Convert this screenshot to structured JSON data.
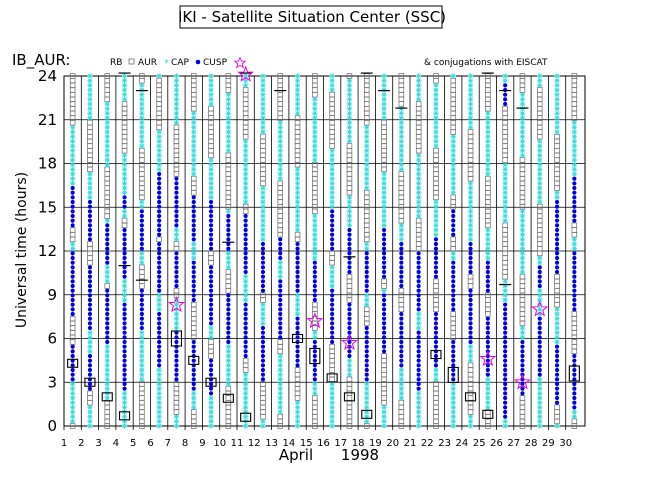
{
  "header": {
    "title": "IKI - Satellite Situation Center (SSC)",
    "subtitle": "IB_AUR:",
    "conj_text": "& conjugations with EISCAT"
  },
  "legend": [
    {
      "label": "RB",
      "symbol": "none"
    },
    {
      "label": "AUR",
      "symbol": "open-square"
    },
    {
      "label": "CAP",
      "symbol": "cyan-star"
    },
    {
      "label": "CUSP",
      "symbol": "blue-dot"
    },
    {
      "label": "",
      "symbol": "magenta-star"
    }
  ],
  "colors": {
    "RB": "#000000",
    "AUR": "#6b6b6b",
    "CAP": "#33dcdc",
    "CUSP": "#0000e6",
    "EISCAT": "#e600e6"
  },
  "chart_data": {
    "type": "scatter",
    "title": "IKI - Satellite Situation Center (SSC)",
    "ylabel": "Universal time (hours)",
    "xlabel": "April",
    "xlabel_year": "1998",
    "ylim": [
      0,
      24
    ],
    "xlim": [
      1,
      31
    ],
    "x_ticks": [
      "1",
      "2",
      "3",
      "4",
      "5",
      "6",
      "7",
      "8",
      "9",
      "10",
      "11",
      "12",
      "13",
      "14",
      "15",
      "16",
      "17",
      "18",
      "19",
      "20",
      "21",
      "22",
      "23",
      "24",
      "25",
      "26",
      "27",
      "28",
      "29",
      "30"
    ],
    "y_ticks": [
      0,
      3,
      6,
      9,
      12,
      15,
      18,
      21,
      24
    ],
    "grid": "horizontal at y ticks, vertical at each day",
    "series": [
      {
        "name": "AUR",
        "type": "band",
        "description": "open squares along each day track"
      },
      {
        "name": "CAP",
        "type": "band",
        "description": "cyan stars along each day track"
      },
      {
        "name": "CUSP",
        "type": "band",
        "description": "blue dots along each day track"
      }
    ],
    "cusp_intervals": [
      {
        "day": 1,
        "ranges": [
          [
            3,
            5.5
          ],
          [
            7.5,
            12
          ],
          [
            13.5,
            16.5
          ]
        ]
      },
      {
        "day": 2,
        "ranges": [
          [
            2.5,
            5
          ],
          [
            6.5,
            11
          ],
          [
            12.5,
            15.5
          ]
        ]
      },
      {
        "day": 3,
        "ranges": [
          [
            5.5,
            9.5
          ],
          [
            11,
            14
          ]
        ]
      },
      {
        "day": 4,
        "ranges": [
          [
            2.5,
            8.5
          ],
          [
            10,
            13.5
          ],
          [
            15,
            16
          ]
        ]
      },
      {
        "day": 5,
        "ranges": [
          [
            6.5,
            9.5
          ],
          [
            12,
            15
          ]
        ]
      },
      {
        "day": 6,
        "ranges": [
          [
            4,
            8
          ],
          [
            9,
            12.5
          ],
          [
            13,
            17.5
          ]
        ]
      },
      {
        "day": 7,
        "ranges": [
          [
            3,
            6.5
          ],
          [
            9.5,
            12
          ],
          [
            13.5,
            17
          ]
        ]
      },
      {
        "day": 8,
        "ranges": [
          [
            2.5,
            6
          ],
          [
            8.5,
            11.5
          ],
          [
            12.5,
            16
          ]
        ]
      },
      {
        "day": 9,
        "ranges": [
          [
            2,
            4.5
          ],
          [
            7,
            11
          ],
          [
            12,
            15.5
          ]
        ]
      },
      {
        "day": 10,
        "ranges": [
          [
            5.5,
            9
          ],
          [
            12,
            14.5
          ]
        ]
      },
      {
        "day": 11,
        "ranges": [
          [
            4.5,
            8.5
          ],
          [
            10.5,
            14.5
          ]
        ]
      },
      {
        "day": 12,
        "ranges": [
          [
            3,
            7
          ],
          [
            9,
            12.5
          ]
        ]
      },
      {
        "day": 13,
        "ranges": [
          [
            6,
            10
          ],
          [
            11.5,
            13
          ]
        ]
      },
      {
        "day": 14,
        "ranges": [
          [
            4,
            7.5
          ],
          [
            9,
            12.5
          ]
        ]
      },
      {
        "day": 15,
        "ranges": [
          [
            3,
            6
          ],
          [
            8.5,
            11.5
          ]
        ]
      },
      {
        "day": 16,
        "ranges": [
          [
            5.5,
            9.5
          ],
          [
            12,
            15
          ]
        ]
      },
      {
        "day": 17,
        "ranges": [
          [
            4.5,
            8.5
          ],
          [
            10.5,
            13.5
          ]
        ]
      },
      {
        "day": 18,
        "ranges": [
          [
            3,
            7
          ],
          [
            9,
            12
          ]
        ]
      },
      {
        "day": 19,
        "ranges": [
          [
            5,
            9
          ],
          [
            10,
            13.5
          ]
        ]
      },
      {
        "day": 20,
        "ranges": [
          [
            4,
            8
          ],
          [
            9.5,
            12.5
          ]
        ]
      },
      {
        "day": 21,
        "ranges": [
          [
            2.5,
            6.5
          ],
          [
            8,
            12
          ]
        ]
      },
      {
        "day": 22,
        "ranges": [
          [
            4,
            8
          ],
          [
            10,
            13
          ]
        ]
      },
      {
        "day": 23,
        "ranges": [
          [
            3,
            6
          ],
          [
            8,
            11.5
          ],
          [
            13,
            15
          ]
        ]
      },
      {
        "day": 24,
        "ranges": [
          [
            5.5,
            9.5
          ],
          [
            10.5,
            12.5
          ]
        ]
      },
      {
        "day": 25,
        "ranges": [
          [
            3.5,
            7.5
          ],
          [
            9,
            11.5
          ]
        ]
      },
      {
        "day": 26,
        "ranges": [
          [
            0.5,
            8.5
          ],
          [
            22,
            23.5
          ]
        ]
      },
      {
        "day": 27,
        "ranges": [
          [
            2,
            6
          ]
        ]
      },
      {
        "day": 28,
        "ranges": [
          [
            3.5,
            7.5
          ],
          [
            9.5,
            11
          ]
        ]
      },
      {
        "day": 29,
        "ranges": [
          [
            1.5,
            5.5
          ],
          [
            10.5,
            15.5
          ]
        ]
      },
      {
        "day": 30,
        "ranges": [
          [
            1,
            5
          ],
          [
            8,
            12
          ],
          [
            14,
            17
          ]
        ]
      }
    ],
    "rb_boxes": [
      {
        "day": 1,
        "ut": 4.3,
        "size": "small"
      },
      {
        "day": 2,
        "ut": 3.0,
        "size": "small"
      },
      {
        "day": 3,
        "ut": 2.0,
        "size": "small"
      },
      {
        "day": 4,
        "ut": 0.7,
        "size": "small"
      },
      {
        "day": 7,
        "ut": 6.0,
        "size": "large"
      },
      {
        "day": 8,
        "ut": 4.5,
        "size": "small"
      },
      {
        "day": 9,
        "ut": 3.0,
        "size": "small"
      },
      {
        "day": 10,
        "ut": 1.9,
        "size": "small"
      },
      {
        "day": 11,
        "ut": 0.6,
        "size": "small"
      },
      {
        "day": 14,
        "ut": 6.0,
        "size": "small"
      },
      {
        "day": 15,
        "ut": 4.8,
        "size": "large"
      },
      {
        "day": 16,
        "ut": 3.3,
        "size": "small"
      },
      {
        "day": 17,
        "ut": 2.0,
        "size": "small"
      },
      {
        "day": 18,
        "ut": 0.8,
        "size": "small"
      },
      {
        "day": 22,
        "ut": 4.9,
        "size": "small"
      },
      {
        "day": 23,
        "ut": 3.5,
        "size": "large"
      },
      {
        "day": 24,
        "ut": 2.0,
        "size": "small"
      },
      {
        "day": 25,
        "ut": 0.8,
        "size": "small"
      },
      {
        "day": 30,
        "ut": 3.6,
        "size": "large"
      }
    ],
    "rb_ticks": [
      {
        "day": 4,
        "ut": 24.2
      },
      {
        "day": 5,
        "ut": 23.0
      },
      {
        "day": 11,
        "ut": 24.2
      },
      {
        "day": 13,
        "ut": 23.0
      },
      {
        "day": 18,
        "ut": 24.2
      },
      {
        "day": 19,
        "ut": 23.0
      },
      {
        "day": 20,
        "ut": 21.8
      },
      {
        "day": 25,
        "ut": 24.2
      },
      {
        "day": 26,
        "ut": 23.0
      },
      {
        "day": 27,
        "ut": 21.8
      },
      {
        "day": 4,
        "ut": 11.0
      },
      {
        "day": 5,
        "ut": 10.0
      },
      {
        "day": 10,
        "ut": 12.6
      },
      {
        "day": 17,
        "ut": 11.6
      },
      {
        "day": 26,
        "ut": 9.7
      }
    ],
    "eiscat_conjugations": [
      {
        "day": 7,
        "ut": 8.3
      },
      {
        "day": 15,
        "ut": 7.2
      },
      {
        "day": 17,
        "ut": 5.7
      },
      {
        "day": 25,
        "ut": 4.6
      },
      {
        "day": 27,
        "ut": 3.0
      },
      {
        "day": 28,
        "ut": 8.0
      },
      {
        "day": 11,
        "ut": 24.1
      }
    ]
  }
}
